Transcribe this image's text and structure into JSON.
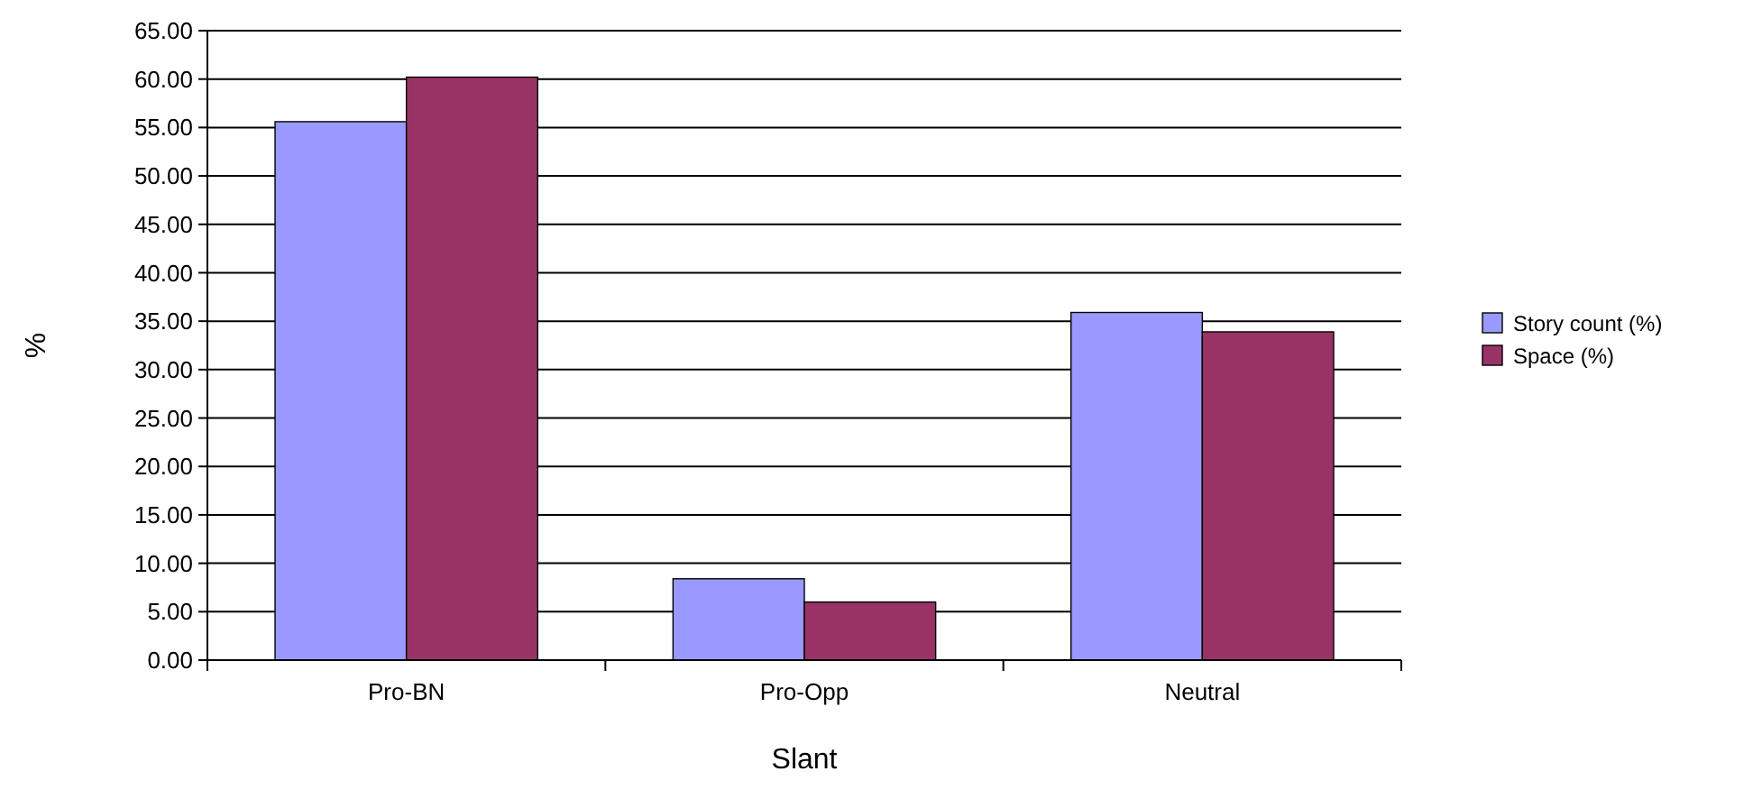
{
  "chart_data": {
    "type": "bar",
    "xlabel": "Slant",
    "ylabel": "%",
    "categories": [
      "Pro-BN",
      "Pro-Opp",
      "Neutral"
    ],
    "series": [
      {
        "name": "Story count (%)",
        "color": "#9999ff",
        "values": [
          55.6,
          8.4,
          35.9
        ]
      },
      {
        "name": "Space (%)",
        "color": "#993366",
        "values": [
          60.2,
          6.0,
          33.9
        ]
      }
    ],
    "ylim": [
      0,
      65
    ],
    "yticks": [
      {
        "value": 0,
        "label": "0.00"
      },
      {
        "value": 5,
        "label": "5.00"
      },
      {
        "value": 10,
        "label": "10.00"
      },
      {
        "value": 15,
        "label": "15.00"
      },
      {
        "value": 20,
        "label": "20.00"
      },
      {
        "value": 25,
        "label": "25.00"
      },
      {
        "value": 30,
        "label": "30.00"
      },
      {
        "value": 35,
        "label": "35.00"
      },
      {
        "value": 40,
        "label": "40.00"
      },
      {
        "value": 45,
        "label": "45.00"
      },
      {
        "value": 50,
        "label": "50.00"
      },
      {
        "value": 55,
        "label": "55.00"
      },
      {
        "value": 60,
        "label": "60.00"
      },
      {
        "value": 65,
        "label": "65.00"
      }
    ],
    "grid": "y",
    "legend": "right"
  }
}
